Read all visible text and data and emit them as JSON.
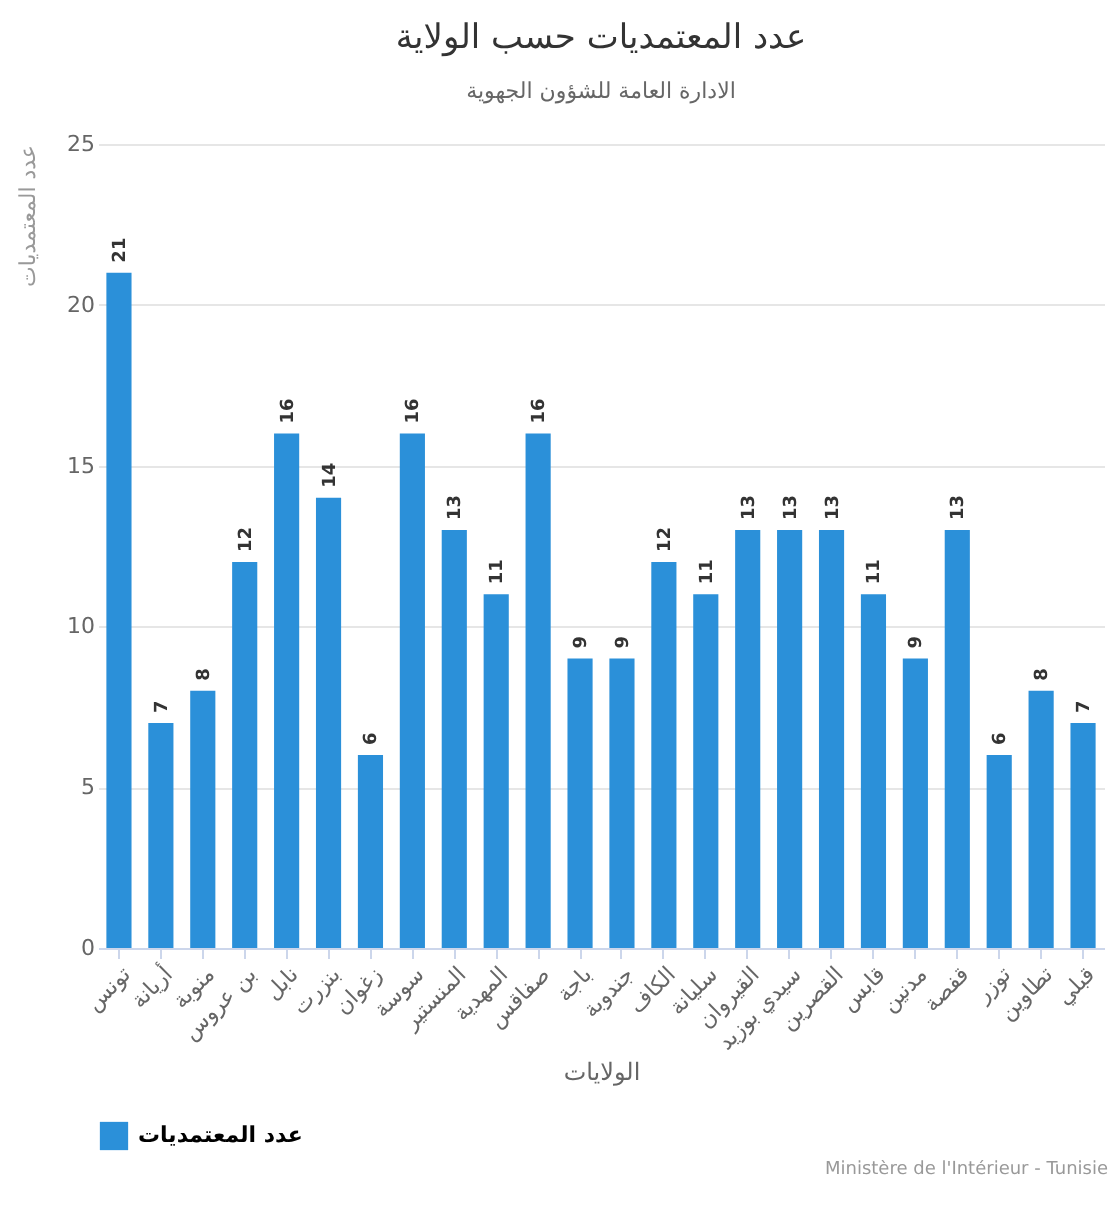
{
  "chart_data": {
    "type": "bar",
    "title": "عدد المعتمديات حسب الولاية",
    "subtitle": "الادارة العامة للشؤون الجهوية",
    "xlabel": "الولايات",
    "ylabel": "عدد المعتمديات",
    "categories": [
      "تونس",
      "أريانة",
      "منوبة",
      "بن عروس",
      "نابل",
      "بنزرت",
      "زغوان",
      "سوسة",
      "المنستير",
      "المهدية",
      "صفاقس",
      "باجة",
      "جندوبة",
      "الكاف",
      "سليانة",
      "القيروان",
      "سيدي بوزيد",
      "القصرين",
      "قابس",
      "مدنين",
      "قفصة",
      "توزر",
      "تطاوين",
      "قبلي"
    ],
    "series": [
      {
        "name": "عدد المعتمديات",
        "color": "#2b90d9",
        "values": [
          21,
          7,
          8,
          12,
          16,
          14,
          6,
          16,
          13,
          11,
          16,
          9,
          9,
          12,
          11,
          13,
          13,
          13,
          11,
          9,
          13,
          6,
          8,
          7
        ]
      }
    ],
    "ylim": [
      0,
      25
    ],
    "yticks": [
      0,
      5,
      10,
      15,
      20,
      25
    ],
    "grid": "y",
    "legend": "bottom",
    "data_labels": true,
    "annotations": [
      "Ministère de l'Intérieur - Tunisie"
    ]
  }
}
